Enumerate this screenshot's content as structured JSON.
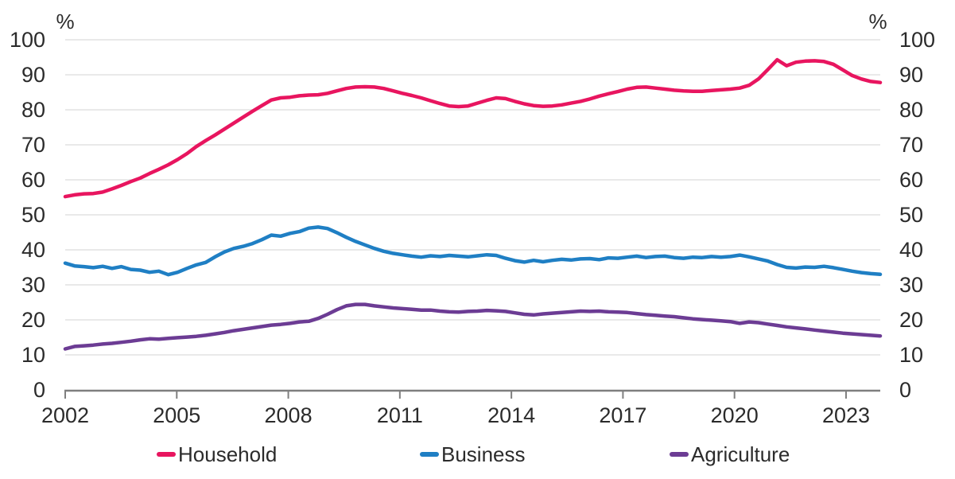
{
  "chart_data": {
    "type": "line",
    "title": "",
    "unit_left": "%",
    "unit_right": "%",
    "xlabel": "",
    "ylabel": "%",
    "xlim": [
      2002,
      2023.92
    ],
    "ylim": [
      0,
      100
    ],
    "x_start": 2002,
    "x_end": 2023.92,
    "x_ticks": [
      2002,
      2005,
      2008,
      2011,
      2014,
      2017,
      2020,
      2023
    ],
    "y_ticks": [
      0,
      10,
      20,
      30,
      40,
      50,
      60,
      70,
      80,
      90,
      100
    ],
    "grid": "horizontal",
    "legend_position": "bottom",
    "text_color": "#2b2b2b",
    "axis_color": "#7f7f7f",
    "grid_color": "#dcdcdc",
    "series": [
      {
        "name": "Household",
        "color": "#e8155f",
        "values": [
          55.2,
          55.7,
          56.0,
          56.1,
          56.5,
          57.4,
          58.4,
          59.5,
          60.5,
          61.8,
          63.0,
          64.3,
          65.8,
          67.5,
          69.5,
          71.2,
          72.8,
          74.5,
          76.2,
          77.9,
          79.6,
          81.2,
          82.8,
          83.4,
          83.6,
          84.0,
          84.2,
          84.3,
          84.7,
          85.4,
          86.1,
          86.5,
          86.6,
          86.5,
          86.1,
          85.4,
          84.7,
          84.1,
          83.4,
          82.6,
          81.8,
          81.1,
          80.9,
          81.1,
          81.9,
          82.7,
          83.4,
          83.2,
          82.4,
          81.7,
          81.2,
          81.0,
          81.1,
          81.4,
          81.9,
          82.4,
          83.1,
          83.9,
          84.6,
          85.2,
          85.9,
          86.4,
          86.5,
          86.2,
          85.9,
          85.6,
          85.4,
          85.3,
          85.3,
          85.5,
          85.7,
          85.9,
          86.2,
          87.0,
          88.8,
          91.5,
          94.3,
          92.6,
          93.6,
          93.9,
          94.0,
          93.8,
          93.0,
          91.4,
          89.8,
          88.8,
          88.1,
          87.8
        ]
      },
      {
        "name": "Business",
        "color": "#1f7fc4",
        "values": [
          36.2,
          35.4,
          35.2,
          34.9,
          35.3,
          34.7,
          35.2,
          34.4,
          34.2,
          33.6,
          33.9,
          32.9,
          33.6,
          34.7,
          35.7,
          36.4,
          38.0,
          39.4,
          40.4,
          41.0,
          41.8,
          42.9,
          44.2,
          43.9,
          44.7,
          45.2,
          46.2,
          46.5,
          46.1,
          44.9,
          43.6,
          42.4,
          41.4,
          40.4,
          39.6,
          39.0,
          38.6,
          38.2,
          37.9,
          38.3,
          38.1,
          38.4,
          38.2,
          38.0,
          38.3,
          38.6,
          38.4,
          37.6,
          36.9,
          36.5,
          37.0,
          36.6,
          37.0,
          37.3,
          37.1,
          37.4,
          37.5,
          37.2,
          37.7,
          37.6,
          37.9,
          38.2,
          37.8,
          38.1,
          38.2,
          37.8,
          37.6,
          37.9,
          37.8,
          38.1,
          37.9,
          38.1,
          38.5,
          38.0,
          37.4,
          36.8,
          35.8,
          35.0,
          34.8,
          35.1,
          35.0,
          35.3,
          34.9,
          34.4,
          33.9,
          33.5,
          33.2,
          33.0
        ]
      },
      {
        "name": "Agriculture",
        "color": "#6c3c94",
        "values": [
          11.7,
          12.4,
          12.6,
          12.8,
          13.1,
          13.3,
          13.6,
          13.9,
          14.3,
          14.6,
          14.5,
          14.7,
          14.9,
          15.1,
          15.3,
          15.6,
          16.0,
          16.4,
          16.9,
          17.3,
          17.7,
          18.1,
          18.5,
          18.7,
          19.0,
          19.4,
          19.6,
          20.4,
          21.6,
          22.9,
          24.0,
          24.4,
          24.4,
          24.0,
          23.7,
          23.4,
          23.2,
          23.0,
          22.8,
          22.8,
          22.5,
          22.3,
          22.2,
          22.4,
          22.5,
          22.7,
          22.6,
          22.4,
          22.0,
          21.6,
          21.4,
          21.7,
          21.9,
          22.1,
          22.3,
          22.5,
          22.4,
          22.5,
          22.3,
          22.2,
          22.1,
          21.8,
          21.5,
          21.3,
          21.1,
          20.9,
          20.6,
          20.3,
          20.1,
          19.9,
          19.7,
          19.5,
          19.0,
          19.4,
          19.2,
          18.8,
          18.4,
          18.0,
          17.7,
          17.4,
          17.1,
          16.8,
          16.5,
          16.2,
          16.0,
          15.8,
          15.6,
          15.4
        ]
      }
    ]
  }
}
